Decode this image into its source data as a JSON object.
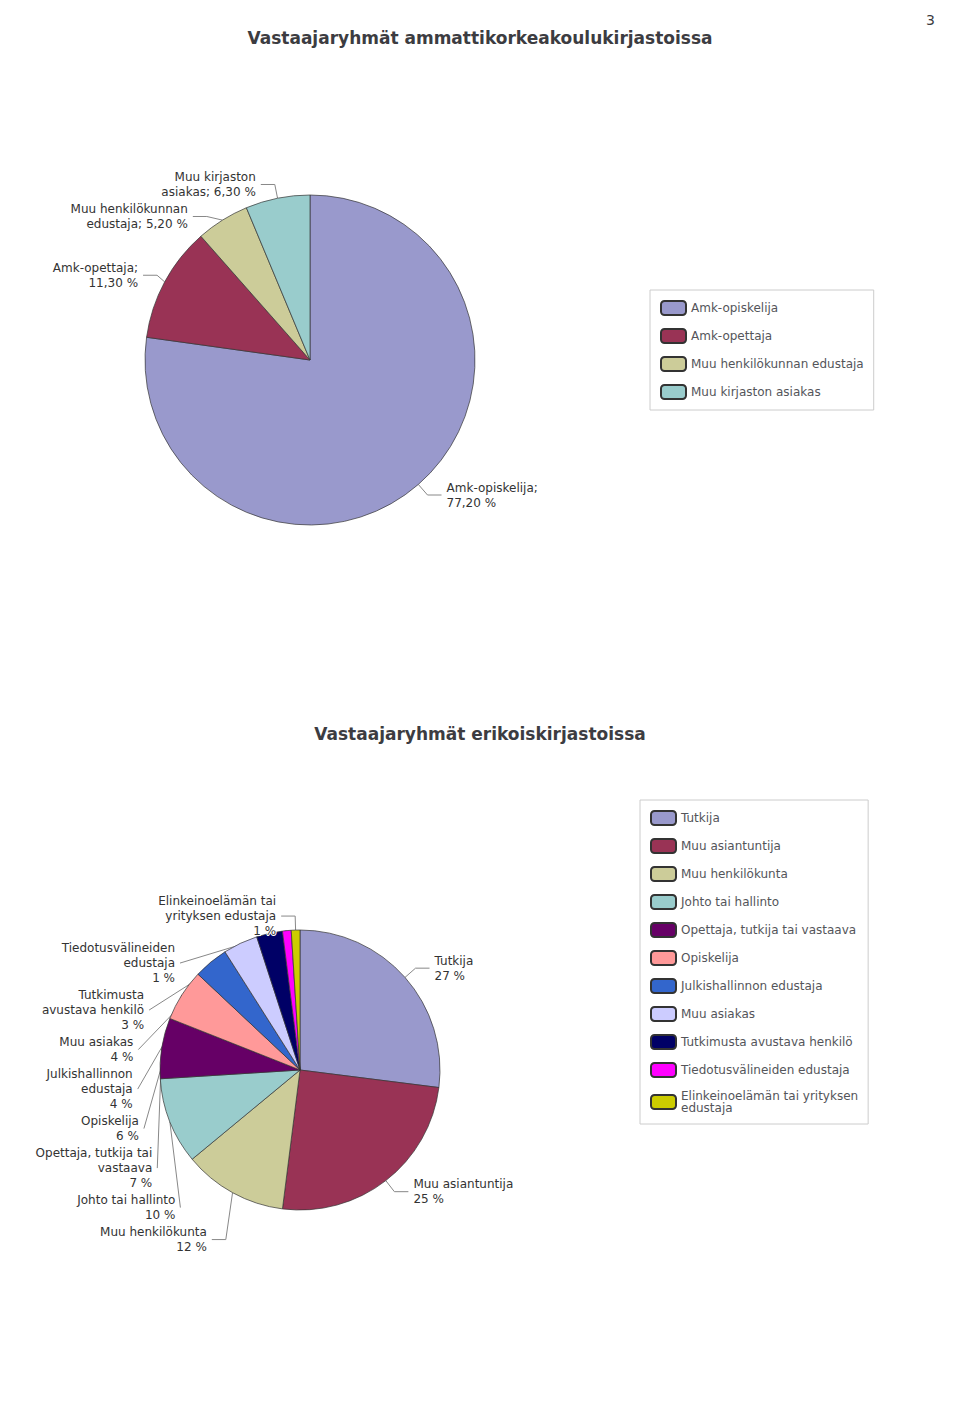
{
  "page_number": "3",
  "chart_data": [
    {
      "type": "pie",
      "title": "Vastaajaryhmät ammattikorkeakoulukirjastoissa",
      "categories": [
        "Amk-opiskelija",
        "Amk-opettaja",
        "Muu henkilökunnan edustaja",
        "Muu kirjaston asiakas"
      ],
      "values": [
        77.2,
        11.3,
        5.2,
        6.3
      ],
      "value_labels": [
        "Amk-opiskelija;\n77,20 %",
        "Amk-opettaja;\n11,30 %",
        "Muu henkilökunnan\nedustaja; 5,20 %",
        "Muu kirjaston\nasiakas; 6,30 %"
      ],
      "colors": [
        "#9999cc",
        "#993355",
        "#cccc99",
        "#99cccc"
      ],
      "data_labels": true,
      "legend": "right"
    },
    {
      "type": "pie",
      "title": "Vastaajaryhmät erikoiskirjastoissa",
      "categories": [
        "Tutkija",
        "Muu asiantuntija",
        "Muu henkilökunta",
        "Johto tai hallinto",
        "Opettaja, tutkija tai vastaava",
        "Opiskelija",
        "Julkishallinnon edustaja",
        "Muu asiakas",
        "Tutkimusta avustava henkilö",
        "Tiedotusvälineiden edustaja",
        "Elinkeinoelämän tai yrityksen\nedustaja"
      ],
      "values": [
        27,
        25,
        12,
        10,
        7,
        6,
        4,
        4,
        3,
        1,
        1
      ],
      "value_labels": [
        "Tutkija\n27 %",
        "Muu asiantuntija\n25 %",
        "Muu henkilökunta\n12 %",
        "Johto tai hallinto\n10 %",
        "Opettaja, tutkija tai\nvastaava\n7 %",
        "Opiskelija\n6 %",
        "Julkishallinnon\nedustaja\n4 %",
        "Muu asiakas\n4 %",
        "Tutkimusta\navustava henkilö\n3 %",
        "Tiedotusvälineiden\nedustaja\n1 %",
        "Elinkeinoelämän tai\nyrityksen edustaja\n1 %"
      ],
      "colors": [
        "#9999cc",
        "#993355",
        "#cccc99",
        "#99cccc",
        "#660066",
        "#ff9999",
        "#3366cc",
        "#ccccff",
        "#000066",
        "#ff00ff",
        "#cccc00"
      ],
      "data_labels": true,
      "legend": "right"
    }
  ]
}
